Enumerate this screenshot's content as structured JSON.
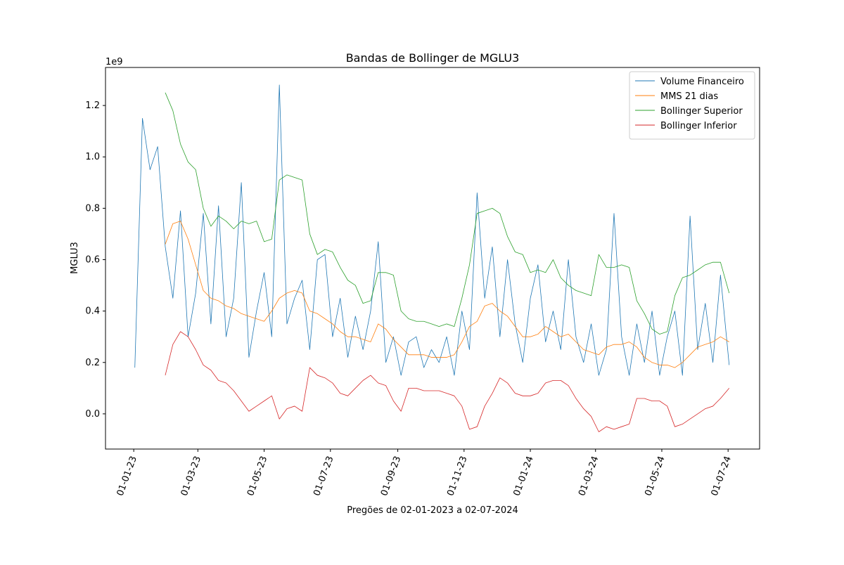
{
  "chart_data": {
    "type": "line",
    "title": "Bandas de Bollinger de MGLU3",
    "x_label": "Pregões de 02-01-2023 a 02-07-2024",
    "y_label": "MGLU3",
    "y_offset_label": "1e9",
    "x": [
      "2023-01-02",
      "2023-01-09",
      "2023-01-16",
      "2023-01-23",
      "2023-01-30",
      "2023-02-06",
      "2023-02-13",
      "2023-02-20",
      "2023-02-27",
      "2023-03-06",
      "2023-03-13",
      "2023-03-20",
      "2023-03-27",
      "2023-04-03",
      "2023-04-10",
      "2023-04-17",
      "2023-04-24",
      "2023-05-01",
      "2023-05-08",
      "2023-05-15",
      "2023-05-22",
      "2023-05-29",
      "2023-06-05",
      "2023-06-12",
      "2023-06-19",
      "2023-06-26",
      "2023-07-03",
      "2023-07-10",
      "2023-07-17",
      "2023-07-24",
      "2023-07-31",
      "2023-08-07",
      "2023-08-14",
      "2023-08-21",
      "2023-08-28",
      "2023-09-04",
      "2023-09-11",
      "2023-09-18",
      "2023-09-25",
      "2023-10-02",
      "2023-10-09",
      "2023-10-16",
      "2023-10-23",
      "2023-10-30",
      "2023-11-06",
      "2023-11-13",
      "2023-11-20",
      "2023-11-27",
      "2023-12-04",
      "2023-12-11",
      "2023-12-18",
      "2023-12-25",
      "2024-01-01",
      "2024-01-08",
      "2024-01-15",
      "2024-01-22",
      "2024-01-29",
      "2024-02-05",
      "2024-02-12",
      "2024-02-19",
      "2024-02-26",
      "2024-03-04",
      "2024-03-11",
      "2024-03-18",
      "2024-03-25",
      "2024-04-01",
      "2024-04-08",
      "2024-04-15",
      "2024-04-22",
      "2024-04-29",
      "2024-05-06",
      "2024-05-13",
      "2024-05-20",
      "2024-05-27",
      "2024-06-03",
      "2024-06-10",
      "2024-06-17",
      "2024-06-24",
      "2024-07-02"
    ],
    "series": [
      {
        "name": "Volume Financeiro",
        "color": "#1f77b4",
        "values": [
          0.18,
          1.15,
          0.95,
          1.04,
          0.65,
          0.45,
          0.79,
          0.3,
          0.47,
          0.78,
          0.35,
          0.81,
          0.3,
          0.45,
          0.9,
          0.22,
          0.4,
          0.55,
          0.3,
          1.28,
          0.35,
          0.45,
          0.52,
          0.25,
          0.6,
          0.62,
          0.3,
          0.45,
          0.22,
          0.38,
          0.25,
          0.4,
          0.67,
          0.2,
          0.3,
          0.15,
          0.28,
          0.3,
          0.18,
          0.25,
          0.2,
          0.3,
          0.15,
          0.4,
          0.25,
          0.86,
          0.45,
          0.65,
          0.3,
          0.6,
          0.35,
          0.2,
          0.45,
          0.58,
          0.28,
          0.4,
          0.25,
          0.6,
          0.3,
          0.2,
          0.35,
          0.15,
          0.25,
          0.78,
          0.3,
          0.15,
          0.35,
          0.2,
          0.4,
          0.15,
          0.3,
          0.4,
          0.15,
          0.77,
          0.25,
          0.43,
          0.2,
          0.54,
          0.19
        ]
      },
      {
        "name": "MMS 21 dias",
        "color": "#ff7f0e",
        "values": [
          null,
          null,
          null,
          null,
          0.66,
          0.74,
          0.75,
          0.68,
          0.58,
          0.48,
          0.45,
          0.44,
          0.42,
          0.41,
          0.39,
          0.38,
          0.37,
          0.36,
          0.4,
          0.45,
          0.47,
          0.48,
          0.47,
          0.4,
          0.39,
          0.37,
          0.35,
          0.32,
          0.3,
          0.3,
          0.29,
          0.28,
          0.35,
          0.33,
          0.29,
          0.26,
          0.23,
          0.23,
          0.23,
          0.22,
          0.22,
          0.22,
          0.23,
          0.28,
          0.34,
          0.36,
          0.42,
          0.43,
          0.4,
          0.38,
          0.34,
          0.3,
          0.3,
          0.31,
          0.34,
          0.32,
          0.3,
          0.31,
          0.28,
          0.25,
          0.24,
          0.23,
          0.26,
          0.27,
          0.27,
          0.28,
          0.26,
          0.22,
          0.2,
          0.19,
          0.19,
          0.18,
          0.2,
          0.23,
          0.26,
          0.27,
          0.28,
          0.3,
          0.28
        ]
      },
      {
        "name": "Bollinger Superior",
        "color": "#2ca02c",
        "values": [
          null,
          null,
          null,
          null,
          1.25,
          1.18,
          1.05,
          0.98,
          0.95,
          0.8,
          0.73,
          0.77,
          0.75,
          0.72,
          0.75,
          0.74,
          0.75,
          0.67,
          0.68,
          0.91,
          0.93,
          0.92,
          0.91,
          0.7,
          0.62,
          0.64,
          0.63,
          0.57,
          0.52,
          0.5,
          0.43,
          0.44,
          0.55,
          0.55,
          0.54,
          0.4,
          0.37,
          0.36,
          0.36,
          0.35,
          0.34,
          0.35,
          0.34,
          0.45,
          0.58,
          0.78,
          0.79,
          0.8,
          0.78,
          0.69,
          0.63,
          0.62,
          0.55,
          0.56,
          0.55,
          0.6,
          0.53,
          0.5,
          0.48,
          0.47,
          0.46,
          0.62,
          0.57,
          0.57,
          0.58,
          0.57,
          0.44,
          0.39,
          0.33,
          0.31,
          0.32,
          0.46,
          0.53,
          0.54,
          0.56,
          0.58,
          0.59,
          0.59,
          0.47
        ]
      },
      {
        "name": "Bollinger Inferior",
        "color": "#d62728",
        "values": [
          null,
          null,
          null,
          null,
          0.15,
          0.27,
          0.32,
          0.3,
          0.25,
          0.19,
          0.17,
          0.13,
          0.12,
          0.09,
          0.05,
          0.01,
          0.03,
          0.05,
          0.07,
          -0.02,
          0.02,
          0.03,
          0.01,
          0.18,
          0.15,
          0.14,
          0.12,
          0.08,
          0.07,
          0.1,
          0.13,
          0.15,
          0.12,
          0.11,
          0.05,
          0.01,
          0.1,
          0.1,
          0.09,
          0.09,
          0.09,
          0.08,
          0.07,
          0.03,
          -0.06,
          -0.05,
          0.03,
          0.08,
          0.14,
          0.12,
          0.08,
          0.07,
          0.07,
          0.08,
          0.12,
          0.13,
          0.13,
          0.11,
          0.06,
          0.02,
          -0.01,
          -0.07,
          -0.05,
          -0.06,
          -0.05,
          -0.04,
          0.06,
          0.06,
          0.05,
          0.05,
          0.03,
          -0.05,
          -0.04,
          -0.02,
          0.0,
          0.02,
          0.03,
          0.06,
          0.1
        ]
      }
    ],
    "xlim": [
      "2022-12-06",
      "2024-07-30"
    ],
    "xticks": [
      {
        "value": "2023-01-01",
        "label": "01-01-23"
      },
      {
        "value": "2023-03-01",
        "label": "01-03-23"
      },
      {
        "value": "2023-05-01",
        "label": "01-05-23"
      },
      {
        "value": "2023-07-01",
        "label": "01-07-23"
      },
      {
        "value": "2023-09-01",
        "label": "01-09-23"
      },
      {
        "value": "2023-11-01",
        "label": "01-11-23"
      },
      {
        "value": "2024-01-01",
        "label": "01-01-24"
      },
      {
        "value": "2024-03-01",
        "label": "01-03-24"
      },
      {
        "value": "2024-05-01",
        "label": "01-05-24"
      },
      {
        "value": "2024-07-01",
        "label": "01-07-24"
      }
    ],
    "ylim": [
      -0.137,
      1.348
    ],
    "yticks": [
      {
        "value": 0,
        "label": "0.0"
      },
      0.2,
      0.4,
      0.6,
      0.8,
      {
        "value": 1,
        "label": "1.0"
      },
      1.2
    ],
    "grid": false,
    "legend": "upper right"
  }
}
